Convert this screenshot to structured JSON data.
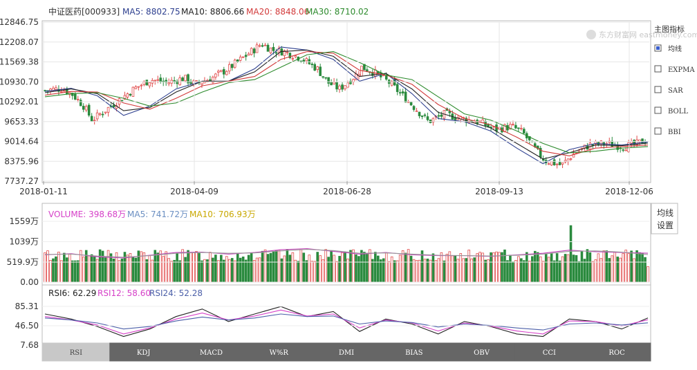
{
  "header": {
    "stock": "中证医药[000933]",
    "ma5": "MA5: 8802.75",
    "ma10": "MA10: 8806.66",
    "ma20": "MA20: 8848.06",
    "ma30": "MA30: 8710.02"
  },
  "watermark": "东方财富网 eastmoney.com",
  "side_panel": {
    "title": "主图指标",
    "options": [
      {
        "label": "均线",
        "checked": true
      },
      {
        "label": "EXPMA",
        "checked": false
      },
      {
        "label": "SAR",
        "checked": false
      },
      {
        "label": "BOLL",
        "checked": false
      },
      {
        "label": "BBI",
        "checked": false
      }
    ],
    "settings_label_1": "均线",
    "settings_label_2": "设置"
  },
  "volume_header": {
    "volume": "VOLUME: 398.68万",
    "ma5": "MA5: 741.72万",
    "ma10": "MA10: 706.93万"
  },
  "rsi_header": {
    "rsi6": "RSI6: 62.29",
    "rsi12": "RSI12: 58.60",
    "rsi24": "RSI24: 52.28"
  },
  "tabs": [
    "RSI",
    "KDJ",
    "MACD",
    "W%R",
    "DMI",
    "BIAS",
    "OBV",
    "CCI",
    "ROC"
  ],
  "active_tab": "RSI",
  "colors": {
    "up": "#e14b4b",
    "down": "#2a8a3e",
    "ma5": "#2d3f8f",
    "ma10": "#222222",
    "ma20": "#d23a3a",
    "ma30": "#2c8a2c",
    "vol_ma5": "#6b8fc2",
    "vol_ma10": "#c9a800",
    "rsi6": "#222222",
    "rsi12": "#d640c8",
    "rsi24": "#4b5fa8"
  },
  "chart_data": [
    {
      "type": "candlestick",
      "ylim": [
        7737.27,
        12846.75
      ],
      "y_ticks": [
        "12846.75",
        "12208.07",
        "11569.38",
        "10930.70",
        "10292.01",
        "9653.33",
        "9014.64",
        "8375.96",
        "7737.27"
      ],
      "x_ticks": [
        "2018-01-11",
        "2018-04-09",
        "2018-06-28",
        "2018-09-13",
        "2018-12-06"
      ],
      "close_path": [
        [
          0,
          10650
        ],
        [
          6,
          10720
        ],
        [
          10,
          10520
        ],
        [
          14,
          10150
        ],
        [
          17,
          9700
        ],
        [
          20,
          9900
        ],
        [
          26,
          10300
        ],
        [
          32,
          10700
        ],
        [
          38,
          11000
        ],
        [
          44,
          10900
        ],
        [
          50,
          11050
        ],
        [
          54,
          10850
        ],
        [
          60,
          11050
        ],
        [
          66,
          11350
        ],
        [
          72,
          11750
        ],
        [
          78,
          12150
        ],
        [
          82,
          11950
        ],
        [
          86,
          11900
        ],
        [
          92,
          11700
        ],
        [
          98,
          11350
        ],
        [
          102,
          10900
        ],
        [
          106,
          10700
        ],
        [
          112,
          11150
        ],
        [
          114,
          11400
        ],
        [
          118,
          11250
        ],
        [
          124,
          10900
        ],
        [
          128,
          10550
        ],
        [
          132,
          10200
        ],
        [
          138,
          9650
        ],
        [
          144,
          9900
        ],
        [
          150,
          9750
        ],
        [
          156,
          9650
        ],
        [
          162,
          9400
        ],
        [
          168,
          9500
        ],
        [
          172,
          9300
        ],
        [
          176,
          8800
        ],
        [
          180,
          8400
        ],
        [
          186,
          8250
        ],
        [
          190,
          8600
        ],
        [
          196,
          8900
        ],
        [
          202,
          8950
        ],
        [
          208,
          8850
        ],
        [
          212,
          8900
        ],
        [
          216,
          9050
        ]
      ],
      "series": [
        {
          "name": "MA5",
          "values": [
            10620,
            10720,
            10480,
            9850,
            10150,
            10700,
            10950,
            10950,
            11350,
            12050,
            11950,
            11650,
            10950,
            11200,
            10550,
            9750,
            9650,
            9350,
            8800,
            8300,
            8750,
            8950,
            8900,
            9000
          ]
        },
        {
          "name": "MA10",
          "values": [
            10580,
            10700,
            10550,
            10000,
            10100,
            10600,
            10950,
            10950,
            11250,
            11900,
            11950,
            11750,
            11100,
            11200,
            10700,
            9950,
            9700,
            9450,
            8950,
            8450,
            8650,
            8900,
            8880,
            8960
          ]
        },
        {
          "name": "MA20",
          "values": [
            10500,
            10620,
            10600,
            10250,
            10050,
            10400,
            10800,
            10950,
            11100,
            11650,
            11900,
            11850,
            11300,
            11150,
            10850,
            10200,
            9750,
            9550,
            9150,
            8700,
            8550,
            8800,
            8850,
            8900
          ]
        },
        {
          "name": "MA30",
          "values": [
            10450,
            10550,
            10580,
            10400,
            10150,
            10250,
            10600,
            10900,
            11000,
            11400,
            11800,
            11900,
            11550,
            11150,
            11000,
            10450,
            9900,
            9700,
            9350,
            8950,
            8650,
            8700,
            8800,
            8850
          ]
        }
      ]
    },
    {
      "type": "bar",
      "ylim": [
        0,
        1559
      ],
      "y_ticks": [
        "1559万",
        "1039万",
        "519.9万",
        "0.00"
      ],
      "last_volume": 398.68,
      "series": [
        {
          "name": "MA5",
          "values": [
            700,
            730,
            650,
            620,
            690,
            760,
            770,
            720,
            760,
            830,
            860,
            790,
            720,
            760,
            700,
            680,
            680,
            660,
            700,
            740,
            820,
            780,
            760,
            742
          ]
        },
        {
          "name": "MA10",
          "values": [
            710,
            720,
            670,
            640,
            680,
            740,
            760,
            740,
            750,
            800,
            840,
            810,
            740,
            750,
            720,
            690,
            680,
            670,
            690,
            720,
            790,
            800,
            770,
            707
          ]
        }
      ]
    },
    {
      "type": "line",
      "ylim": [
        7.68,
        85.31
      ],
      "y_ticks": [
        "85.31",
        "46.50",
        "7.68"
      ],
      "series": [
        {
          "name": "RSI6",
          "values": [
            70,
            60,
            45,
            25,
            40,
            65,
            80,
            55,
            70,
            85,
            65,
            75,
            35,
            60,
            50,
            30,
            55,
            45,
            30,
            25,
            60,
            55,
            40,
            62
          ]
        },
        {
          "name": "RSI12",
          "values": [
            65,
            58,
            48,
            30,
            42,
            60,
            72,
            58,
            66,
            78,
            66,
            70,
            42,
            58,
            52,
            36,
            52,
            46,
            36,
            30,
            56,
            55,
            46,
            58.6
          ]
        },
        {
          "name": "RSI24",
          "values": [
            62,
            58,
            52,
            40,
            45,
            56,
            64,
            58,
            62,
            70,
            65,
            66,
            50,
            56,
            53,
            44,
            50,
            47,
            42,
            38,
            50,
            52,
            48,
            52.3
          ]
        }
      ]
    }
  ]
}
